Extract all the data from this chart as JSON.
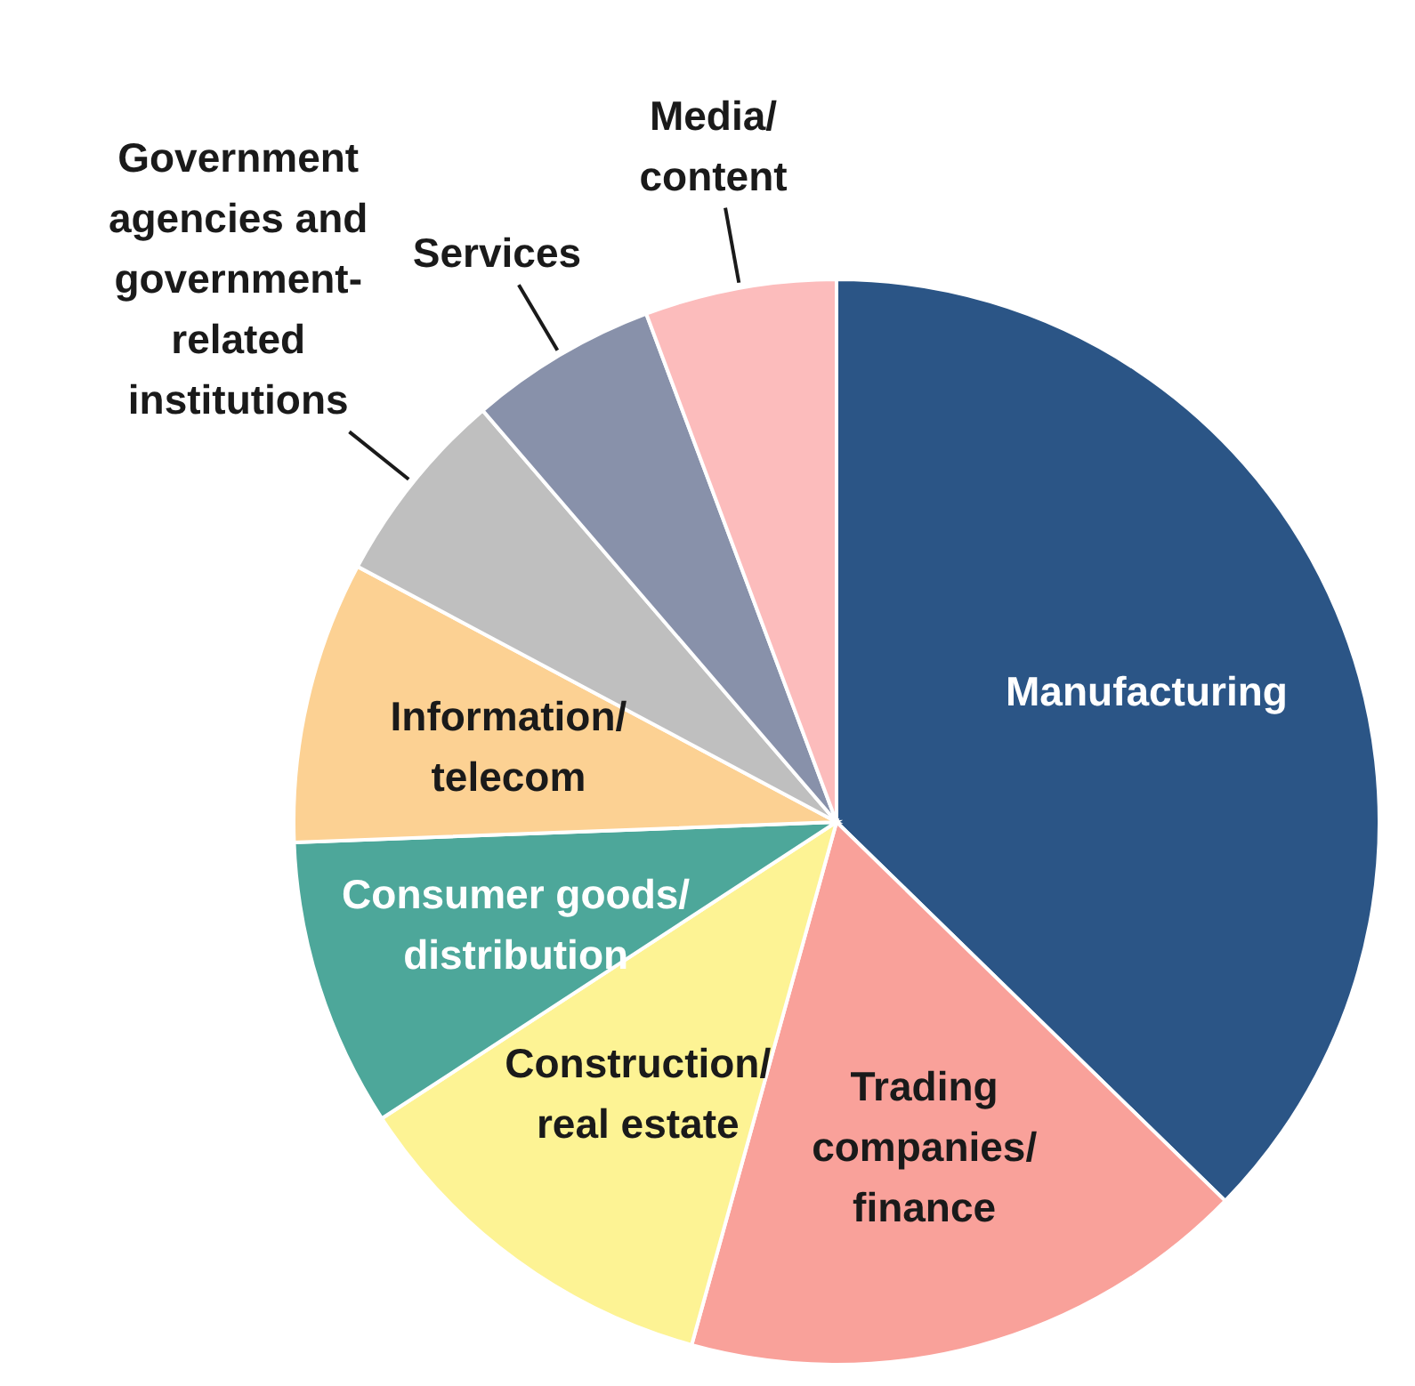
{
  "chart_data": {
    "type": "pie",
    "categories": [
      "Manufacturing",
      "Trading\ncompanies/\nfinance",
      "Construction/\nreal estate",
      "Consumer goods/\ndistribution",
      "Information/\ntelecom",
      "Government\nagencies and\ngovernment-\nrelated\ninstitutions",
      "Services",
      "Media/\ncontent"
    ],
    "values": [
      37.3,
      17,
      11.5,
      8.6,
      8.4,
      5.9,
      5.6,
      5.7
    ],
    "colors": [
      "#2b5586",
      "#f9a19a",
      "#fdf394",
      "#4da79a",
      "#fcd193",
      "#bfbfbf",
      "#8891aa",
      "#fcbcbc"
    ]
  }
}
